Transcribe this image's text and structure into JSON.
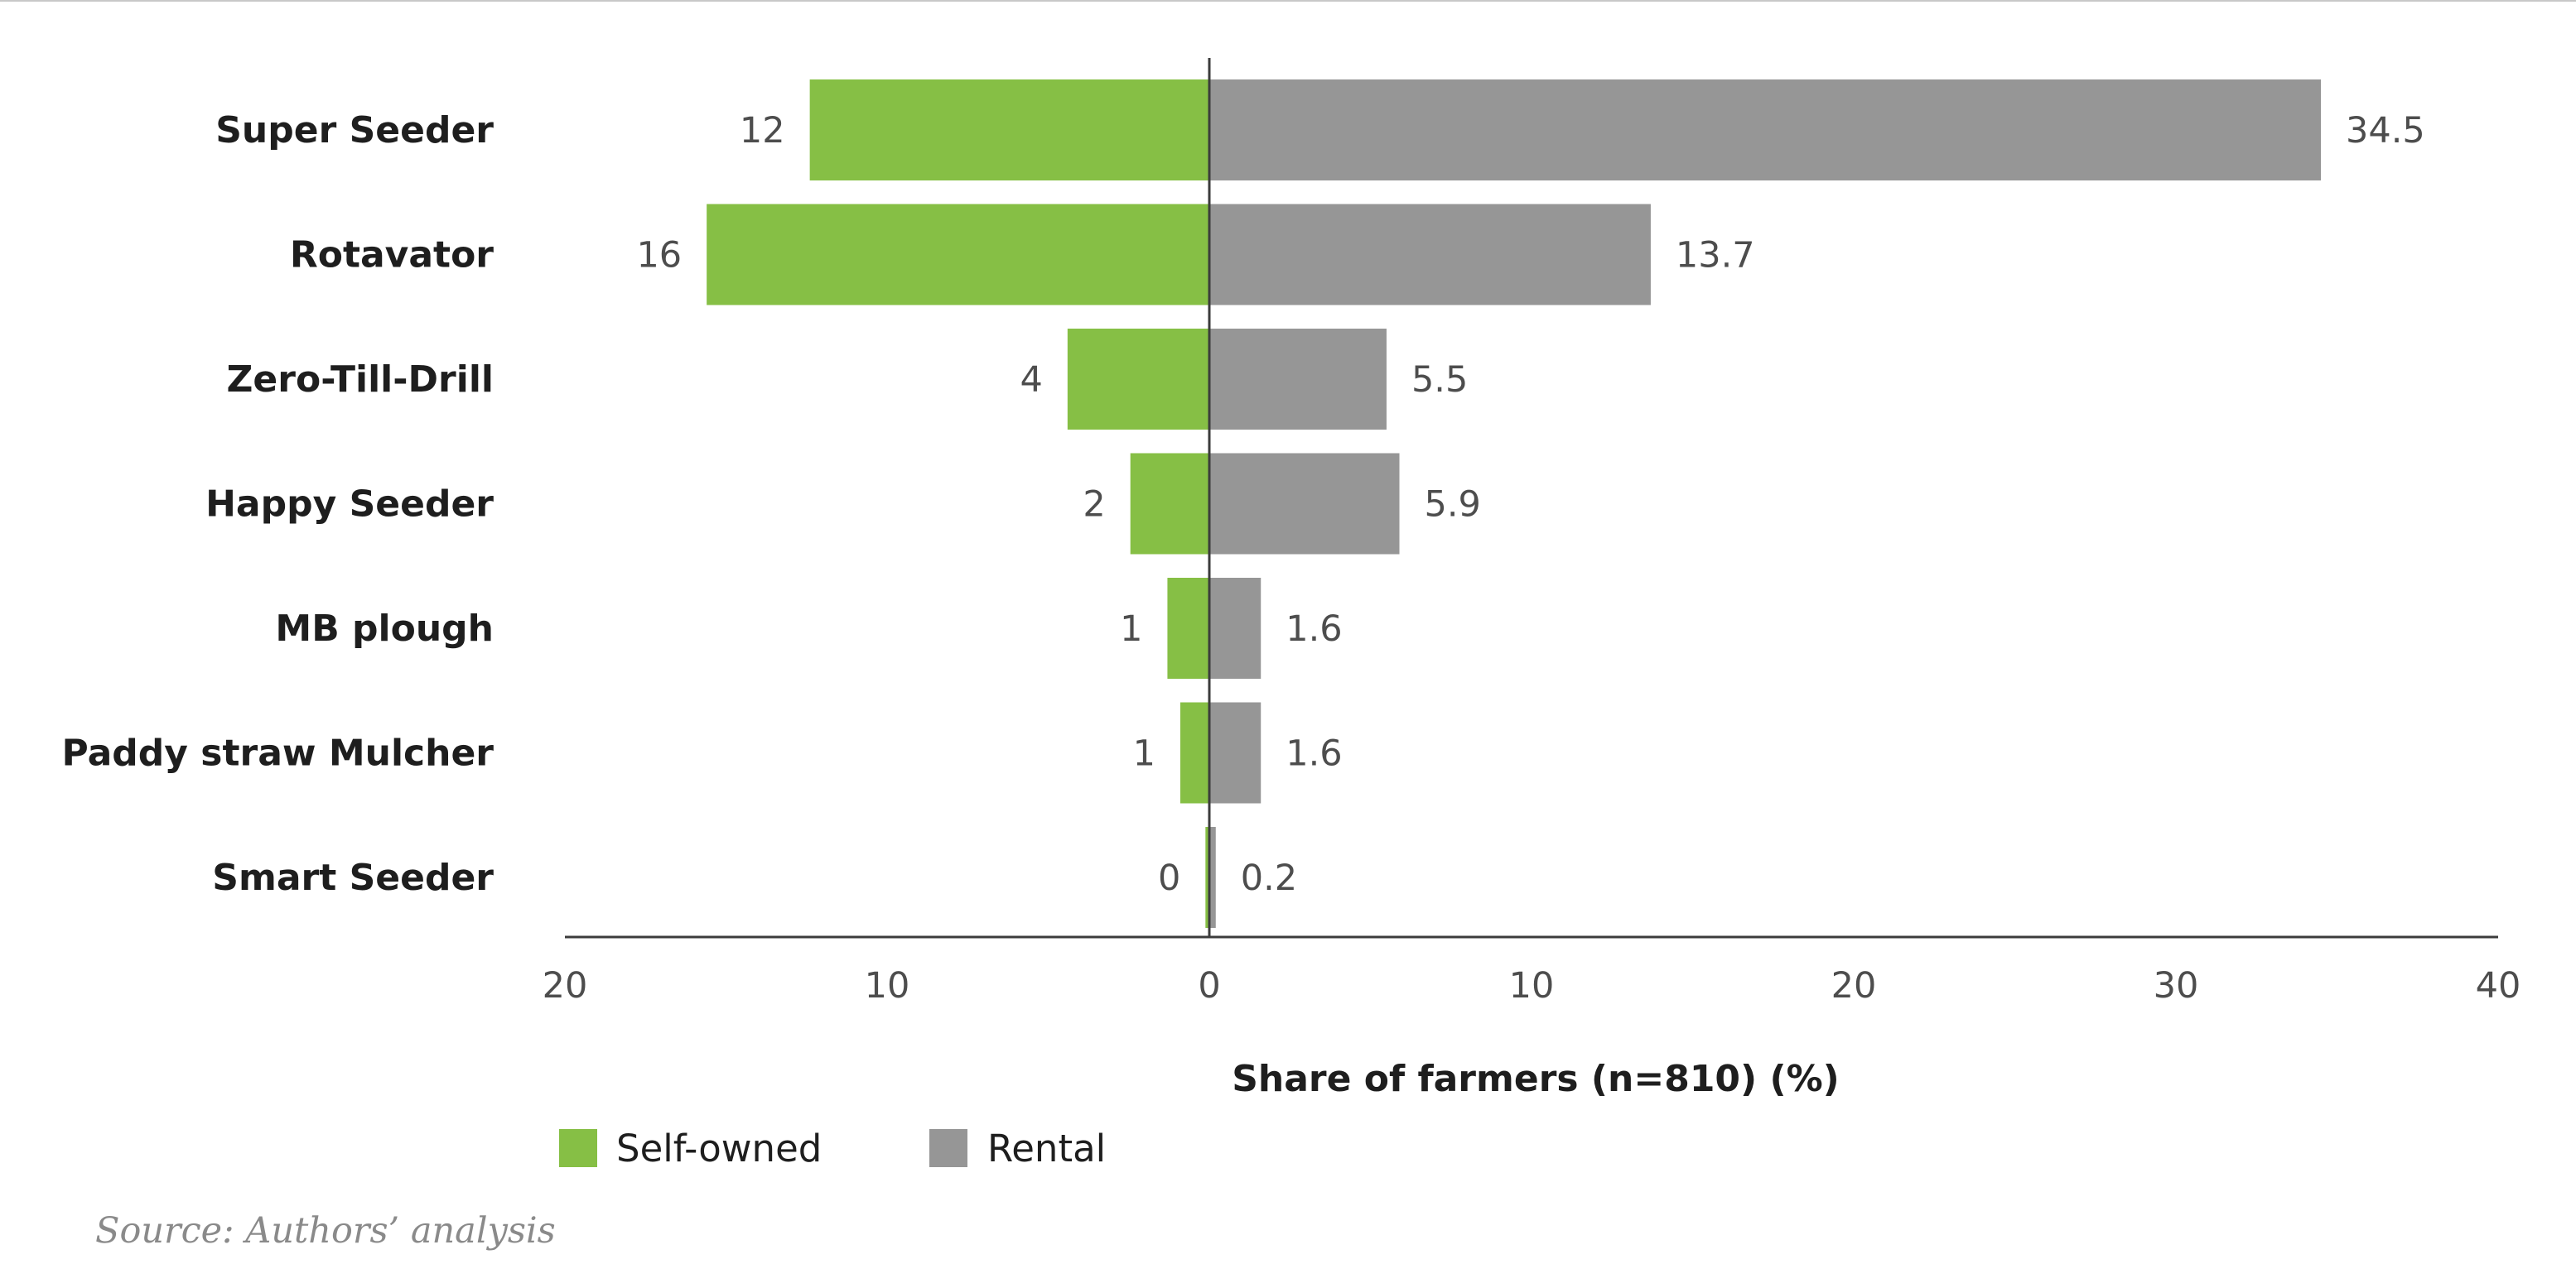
{
  "chart_data": {
    "type": "bar",
    "orientation": "horizontal",
    "layout": "diverging",
    "categories": [
      "Super Seeder",
      "Rotavator",
      "Zero-Till-Drill",
      "Happy Seeder",
      "MB plough",
      "Paddy straw Mulcher",
      "Smart Seeder"
    ],
    "series": [
      {
        "name": "Self-owned",
        "color": "#86bf45",
        "direction": "left",
        "values": [
          12,
          16,
          4,
          2,
          1,
          1,
          0
        ],
        "bar_extent": [
          12.4,
          15.6,
          4.4,
          2.45,
          1.3,
          0.9,
          0.12
        ]
      },
      {
        "name": "Rental",
        "color": "#969696",
        "direction": "right",
        "values": [
          34.5,
          13.7,
          5.5,
          5.9,
          1.6,
          1.6,
          0.2
        ]
      }
    ],
    "value_labels": {
      "Self-owned": [
        "12",
        "16",
        "4",
        "2",
        "1",
        "1",
        "0"
      ],
      "Rental": [
        "34.5",
        "13.7",
        "5.5",
        "5.9",
        "1.6",
        "1.6",
        "0.2"
      ]
    },
    "xlabel": "Share of farmers (n=810) (%)",
    "ylabel": "",
    "xlim": [
      -20,
      40
    ],
    "xticks": [
      -20,
      -10,
      0,
      10,
      20,
      30,
      40
    ],
    "xtick_labels": [
      "20",
      "10",
      "0",
      "10",
      "20",
      "30",
      "40"
    ],
    "grid": false,
    "legend": "bottom-left"
  },
  "source": "Source: Authors’ analysis",
  "colors": {
    "axis": "#3c3c3c",
    "top_rule": "#c8c8c8"
  }
}
